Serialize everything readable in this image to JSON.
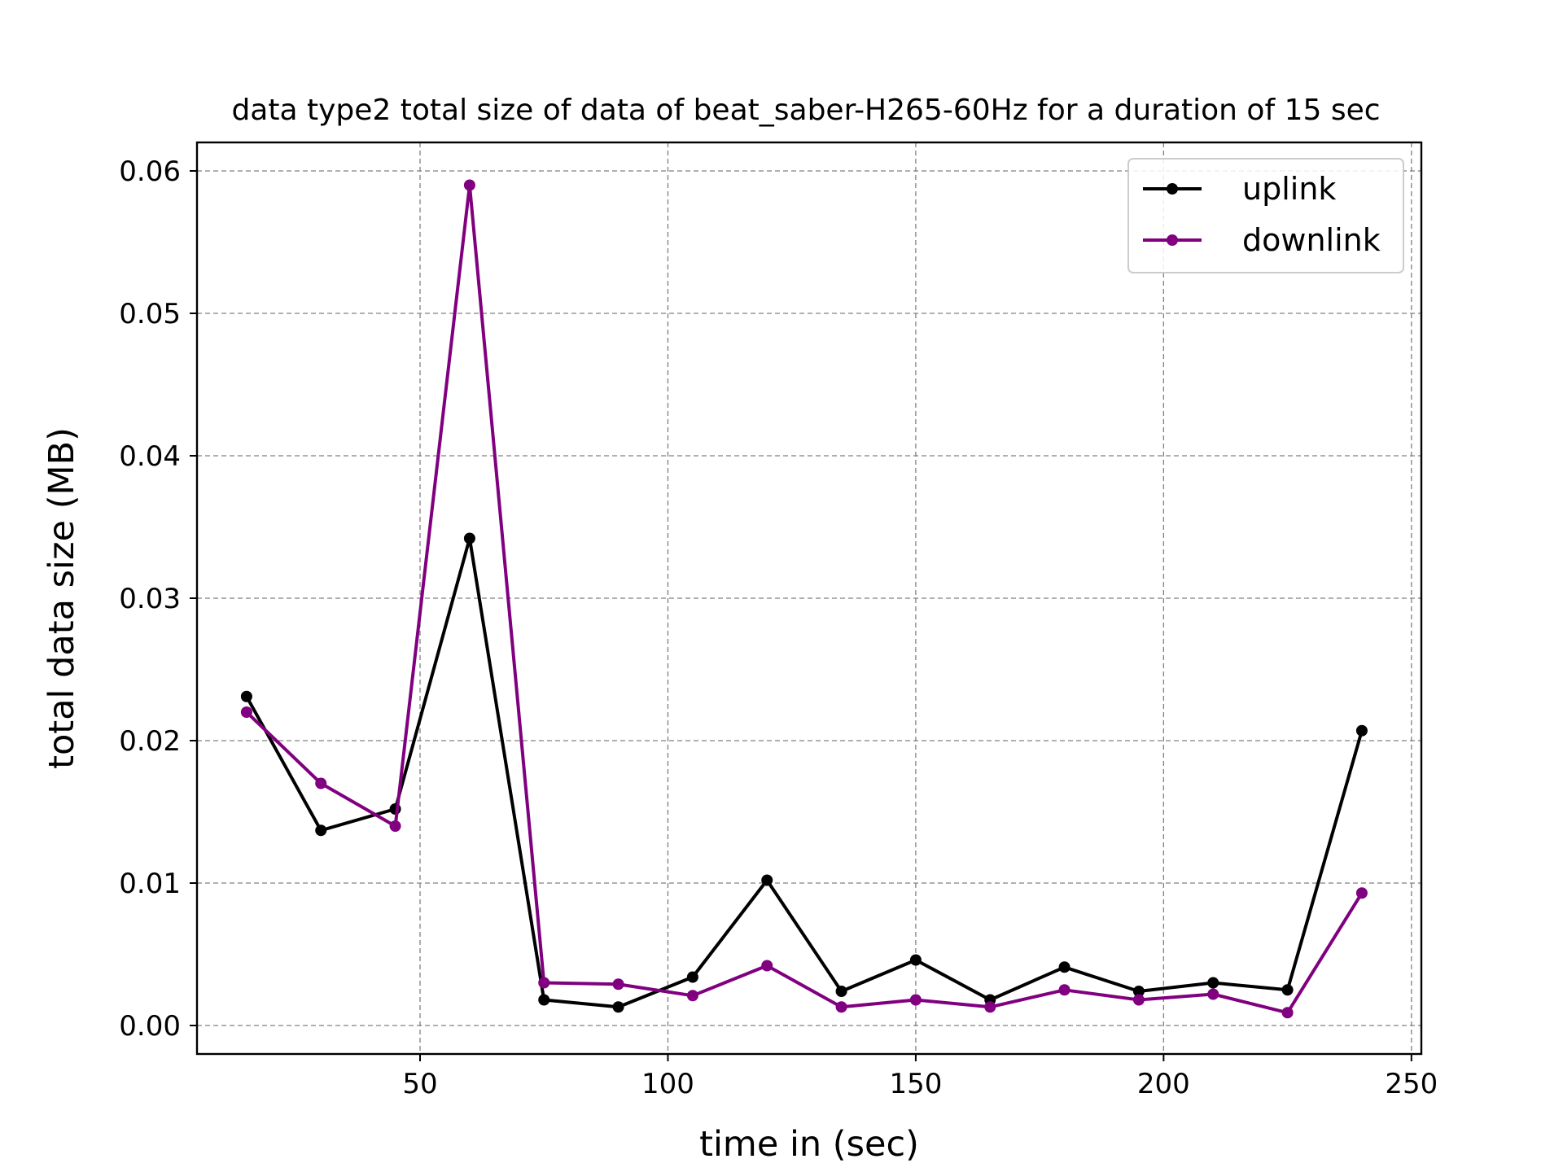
{
  "chart_data": {
    "type": "line",
    "title": "data type2 total size of data of beat_saber-H265-60Hz for a duration of 15 sec",
    "xlabel": "time in (sec)",
    "ylabel": "total data size (MB)",
    "xlim": [
      5,
      252
    ],
    "ylim": [
      -0.002,
      0.062
    ],
    "xticks": [
      50,
      100,
      150,
      200,
      250
    ],
    "xtick_labels": [
      "50",
      "100",
      "150",
      "200",
      "250"
    ],
    "yticks": [
      0,
      0.01,
      0.02,
      0.03,
      0.04,
      0.05,
      0.06
    ],
    "ytick_labels": [
      "0.00",
      "0.01",
      "0.02",
      "0.03",
      "0.04",
      "0.05",
      "0.06"
    ],
    "grid": true,
    "legend_position": "top-right",
    "x": [
      15,
      30,
      45,
      60,
      75,
      90,
      105,
      120,
      135,
      150,
      165,
      180,
      195,
      210,
      225,
      240
    ],
    "series": [
      {
        "name": "uplink",
        "color": "#000000",
        "values": [
          0.0231,
          0.0137,
          0.0152,
          0.0342,
          0.0018,
          0.0013,
          0.0034,
          0.0102,
          0.0024,
          0.0046,
          0.0018,
          0.0041,
          0.0024,
          0.003,
          0.0025,
          0.0207
        ]
      },
      {
        "name": "downlink",
        "color": "#800080",
        "values": [
          0.022,
          0.017,
          0.014,
          0.059,
          0.003,
          0.0029,
          0.0021,
          0.0042,
          0.0013,
          0.0018,
          0.0013,
          0.0025,
          0.0018,
          0.0022,
          0.0009,
          0.0093
        ]
      }
    ]
  }
}
